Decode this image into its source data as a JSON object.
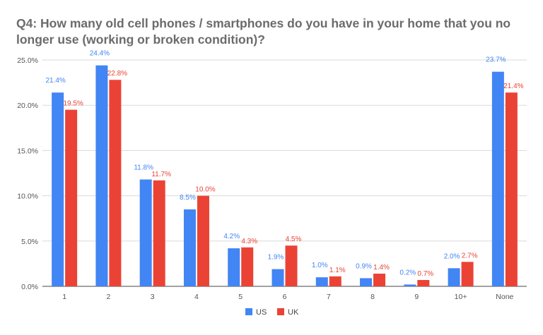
{
  "chart_data": {
    "type": "bar",
    "title": "Q4: How many old cell phones / smartphones do you have in your home that you no longer use (working or broken condition)?",
    "categories": [
      "1",
      "2",
      "3",
      "4",
      "5",
      "6",
      "7",
      "8",
      "9",
      "10+",
      "None"
    ],
    "series": [
      {
        "name": "US",
        "color": "#4285f4",
        "values": [
          21.4,
          24.4,
          11.8,
          8.5,
          4.2,
          1.9,
          1.0,
          0.9,
          0.2,
          2.0,
          23.7
        ],
        "labels": [
          "21.4%",
          "24.4%",
          "11.8%",
          "8.5%",
          "4.2%",
          "1.9%",
          "1.0%",
          "0.9%",
          "0.2%",
          "2.0%",
          "23.7%"
        ]
      },
      {
        "name": "UK",
        "color": "#ea4335",
        "values": [
          19.5,
          22.8,
          11.7,
          10.0,
          4.3,
          4.5,
          1.1,
          1.4,
          0.7,
          2.7,
          21.4
        ],
        "labels": [
          "19.5%",
          "22.8%",
          "11.7%",
          "10.0%",
          "4.3%",
          "4.5%",
          "1.1%",
          "1.4%",
          "0.7%",
          "2.7%",
          "21.4%"
        ]
      }
    ],
    "ylim": [
      0,
      25
    ],
    "yticks": [
      "0.0%",
      "5.0%",
      "10.0%",
      "15.0%",
      "20.0%",
      "25.0%"
    ],
    "ytick_values": [
      0,
      5,
      10,
      15,
      20,
      25
    ],
    "grid": true,
    "legend_position": "bottom-center"
  }
}
